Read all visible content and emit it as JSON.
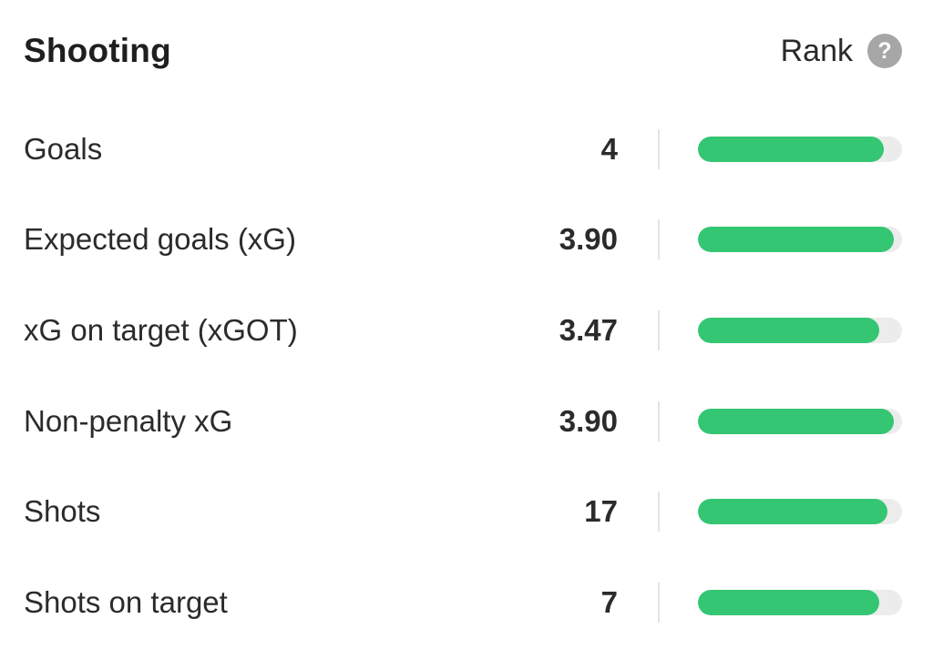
{
  "header": {
    "title": "Shooting",
    "rank_label": "Rank",
    "help_symbol": "?"
  },
  "accent_color": "#34c672",
  "stats": [
    {
      "label": "Goals",
      "value": "4",
      "rank_fraction": 0.91
    },
    {
      "label": "Expected goals (xG)",
      "value": "3.90",
      "rank_fraction": 0.96
    },
    {
      "label": "xG on target (xGOT)",
      "value": "3.47",
      "rank_fraction": 0.89
    },
    {
      "label": "Non-penalty xG",
      "value": "3.90",
      "rank_fraction": 0.96
    },
    {
      "label": "Shots",
      "value": "17",
      "rank_fraction": 0.93
    },
    {
      "label": "Shots on target",
      "value": "7",
      "rank_fraction": 0.89
    }
  ]
}
